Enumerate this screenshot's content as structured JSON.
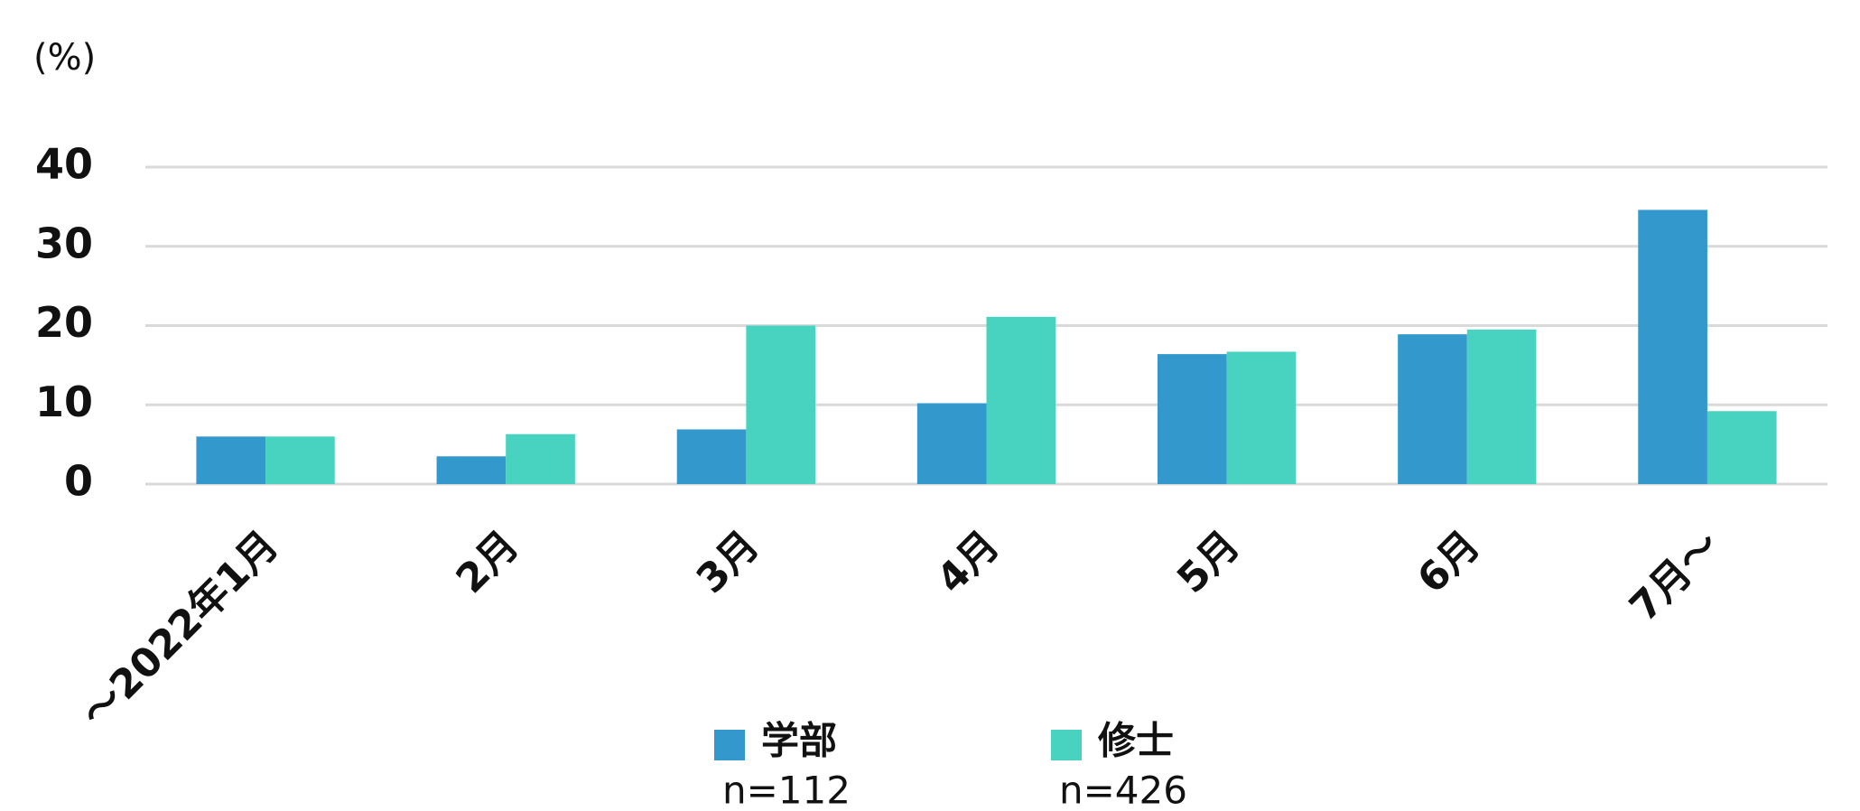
{
  "chart_data": {
    "type": "bar",
    "y_unit": "(%)",
    "categories": [
      "～2022年1月",
      "2月",
      "3月",
      "4月",
      "5月",
      "6月",
      "7月～"
    ],
    "series": [
      {
        "name": "学部",
        "n_label": "n=112",
        "color": "#3399cc",
        "values": [
          6.0,
          3.5,
          6.9,
          10.2,
          16.4,
          18.9,
          34.6
        ]
      },
      {
        "name": "修士",
        "n_label": "n=426",
        "color": "#47d3bf",
        "values": [
          6.0,
          6.3,
          20.0,
          21.1,
          16.7,
          19.5,
          9.2
        ]
      }
    ],
    "ylim": [
      0,
      40
    ],
    "yticks": [
      0,
      10,
      20,
      30,
      40
    ],
    "grid": true
  }
}
